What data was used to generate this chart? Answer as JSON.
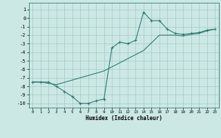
{
  "title": "",
  "xlabel": "Humidex (Indice chaleur)",
  "background_color": "#cce8e5",
  "grid_color": "#a0c8c4",
  "line_color": "#2a7870",
  "xlim": [
    -0.5,
    23.5
  ],
  "ylim": [
    -10.5,
    1.8
  ],
  "xticks": [
    0,
    1,
    2,
    3,
    4,
    5,
    6,
    7,
    8,
    9,
    10,
    11,
    12,
    13,
    14,
    15,
    16,
    17,
    18,
    19,
    20,
    21,
    22,
    23
  ],
  "yticks": [
    1,
    0,
    -1,
    -2,
    -3,
    -4,
    -5,
    -6,
    -7,
    -8,
    -9,
    -10
  ],
  "line1_x": [
    0,
    1,
    2,
    3,
    4,
    5,
    6,
    7,
    8,
    9,
    10,
    11,
    12,
    13,
    14,
    15,
    16,
    17,
    18,
    19,
    20,
    21,
    22,
    23
  ],
  "line1_y": [
    -7.5,
    -7.5,
    -7.5,
    -8.0,
    -8.6,
    -9.2,
    -10.0,
    -10.0,
    -9.7,
    -9.5,
    -3.5,
    -2.8,
    -3.0,
    -2.6,
    0.7,
    -0.3,
    -0.3,
    -1.3,
    -1.8,
    -1.9,
    -1.8,
    -1.7,
    -1.4,
    -1.3
  ],
  "line2_x": [
    0,
    1,
    3,
    9,
    14,
    16,
    18,
    19,
    20,
    21,
    22,
    23
  ],
  "line2_y": [
    -7.5,
    -7.5,
    -7.8,
    -6.2,
    -3.8,
    -2.0,
    -2.0,
    -2.1,
    -1.9,
    -1.8,
    -1.5,
    -1.3
  ],
  "figsize": [
    3.2,
    2.0
  ],
  "dpi": 100
}
